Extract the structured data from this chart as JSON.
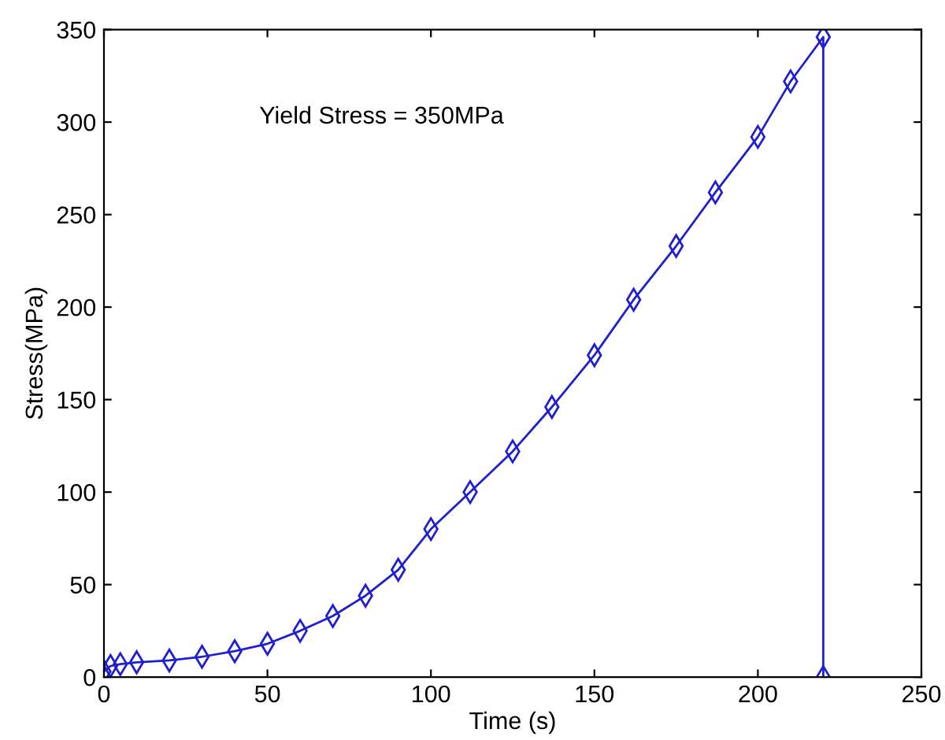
{
  "chart_data": {
    "type": "line",
    "xlabel": "Time (s)",
    "ylabel": "Stress(MPa)",
    "annotations": [
      "Yield Stress = 350MPa"
    ],
    "x": [
      0,
      2,
      5,
      10,
      20,
      30,
      40,
      50,
      60,
      70,
      80,
      90,
      100,
      112,
      125,
      137,
      150,
      162,
      175,
      187,
      200,
      210,
      220,
      220
    ],
    "series": [
      {
        "color": "#1f1fd0",
        "values": [
          3,
          6,
          7,
          8,
          9,
          11,
          14,
          18,
          25,
          33,
          44,
          58,
          80,
          100,
          122,
          146,
          174,
          204,
          233,
          262,
          292,
          322,
          346,
          0
        ]
      }
    ],
    "xlim": [
      0,
      250
    ],
    "ylim": [
      0,
      350
    ],
    "xticks": [
      0,
      50,
      100,
      150,
      200,
      250
    ],
    "yticks": [
      0,
      50,
      100,
      150,
      200,
      250,
      300,
      350
    ],
    "marker": "diamond",
    "line_style": "solid",
    "grid": false,
    "legend": false
  }
}
